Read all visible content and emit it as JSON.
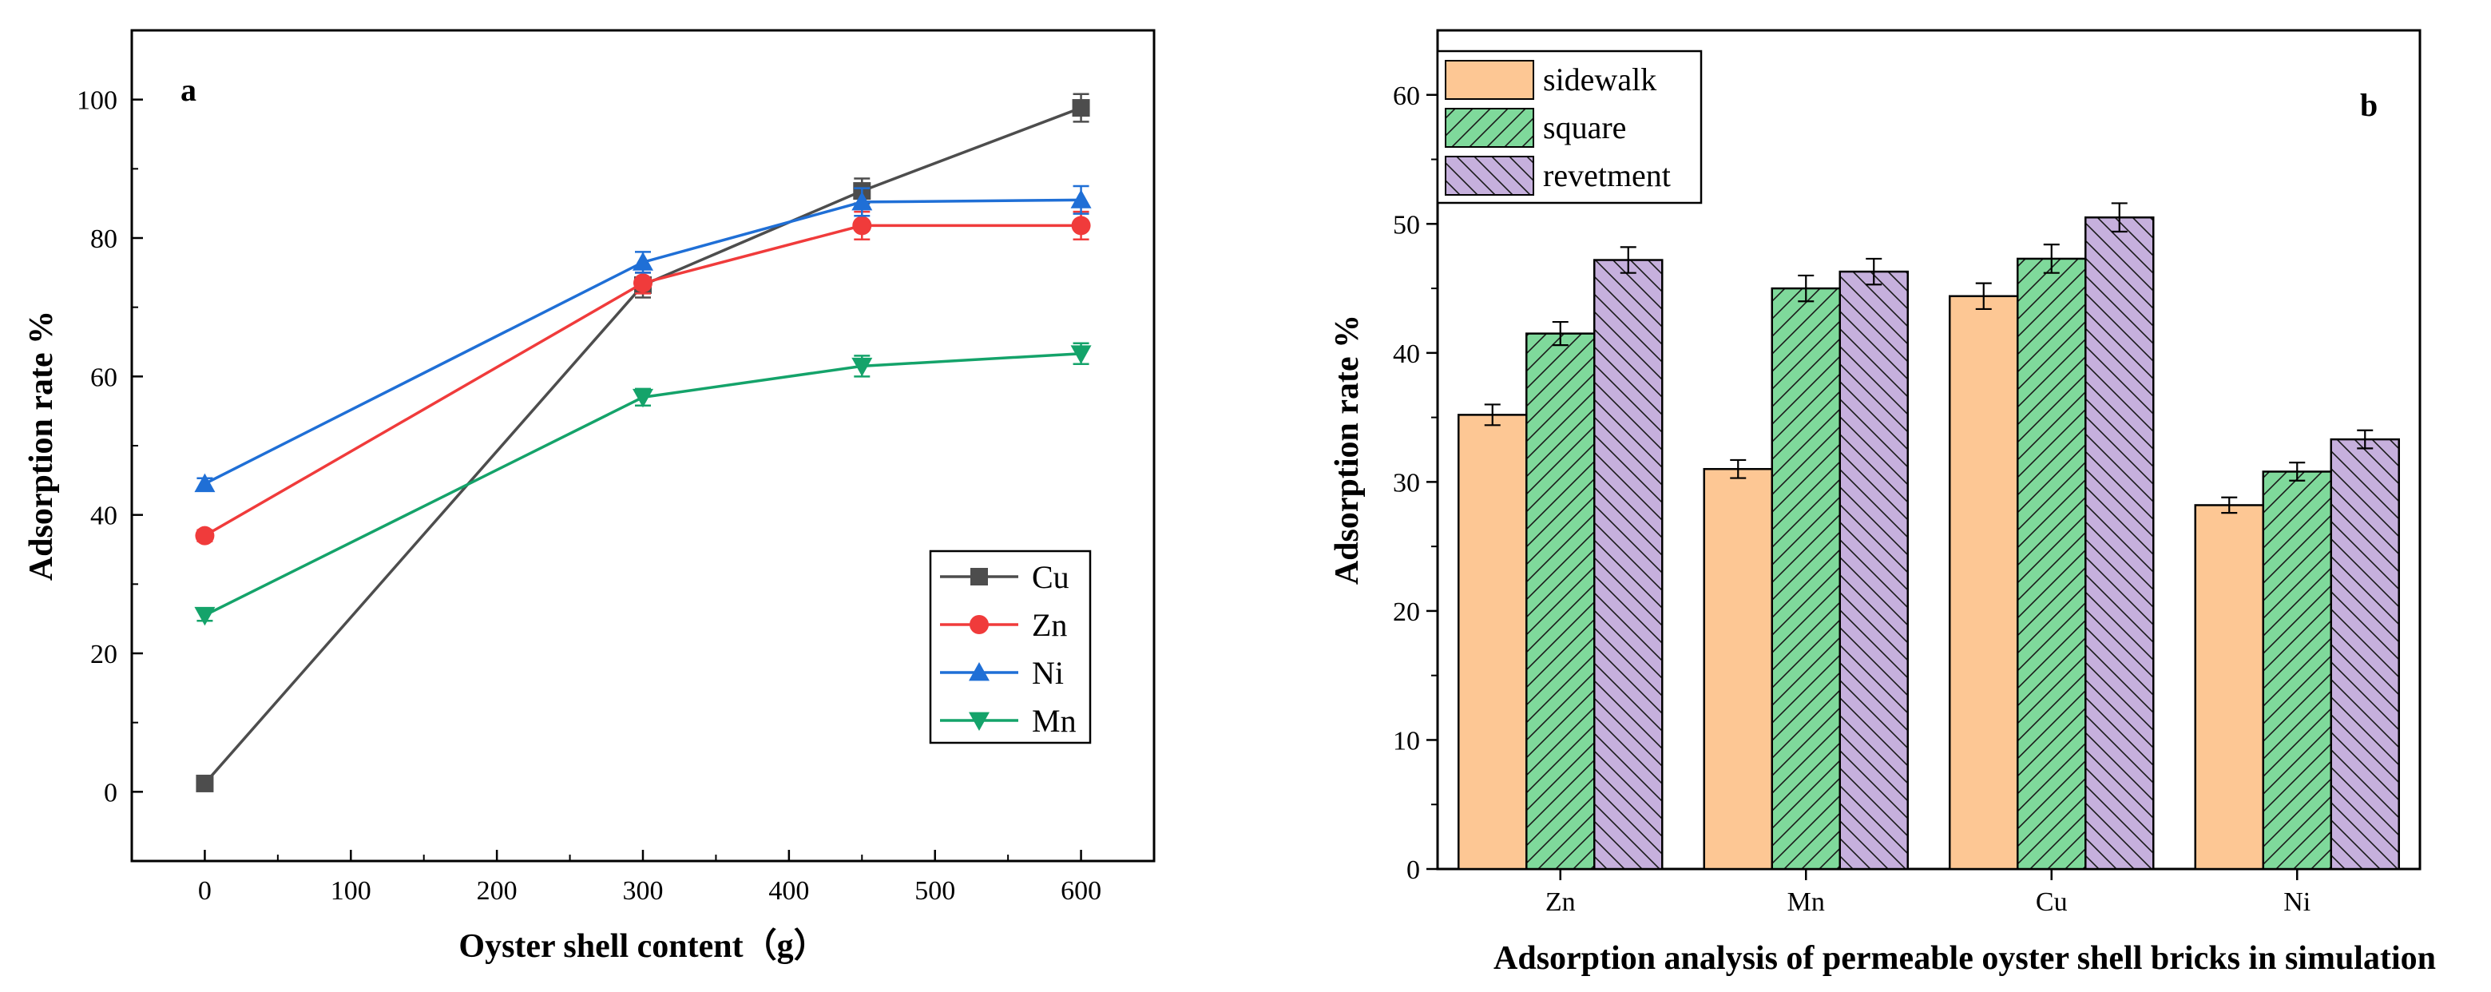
{
  "colors": {
    "Cu": "#4d4d4d",
    "Zn": "#f03b3b",
    "Ni": "#1f6fd6",
    "Mn": "#14a36a",
    "sidewalk": "#fdc794",
    "square": "#7fd99b",
    "revetment": "#c6b0dd"
  },
  "chart_data": [
    {
      "type": "line",
      "panel_label": "a",
      "title": "",
      "xlabel": "Oyster shell content（g）",
      "ylabel": "Adsorption rate %",
      "xlim": [
        -50,
        650
      ],
      "ylim": [
        -10,
        110
      ],
      "xticks": [
        0,
        100,
        200,
        300,
        400,
        500,
        600
      ],
      "yticks": [
        0,
        20,
        40,
        60,
        80,
        100
      ],
      "legend_position": "bottom-right",
      "x": [
        0,
        300,
        450,
        600
      ],
      "series": [
        {
          "name": "Cu",
          "marker": "square",
          "values": [
            1.2,
            73.2,
            86.8,
            98.8
          ],
          "errors": [
            0.8,
            1.8,
            1.8,
            2.0
          ]
        },
        {
          "name": "Zn",
          "marker": "circle",
          "values": [
            37.0,
            73.5,
            81.8,
            81.8
          ],
          "errors": [
            0.8,
            1.5,
            2.0,
            2.0
          ]
        },
        {
          "name": "Ni",
          "marker": "triangle-up",
          "values": [
            44.5,
            76.5,
            85.2,
            85.5
          ],
          "errors": [
            0.8,
            1.5,
            2.0,
            2.0
          ]
        },
        {
          "name": "Mn",
          "marker": "triangle-down",
          "values": [
            25.5,
            57.0,
            61.5,
            63.3
          ],
          "errors": [
            0.8,
            1.2,
            1.5,
            1.5
          ]
        }
      ]
    },
    {
      "type": "bar",
      "panel_label": "b",
      "title": "",
      "xlabel": "Adsorption analysis of permeable oyster shell bricks in simulation",
      "ylabel": "Adsorption rate %",
      "ylim": [
        0,
        65
      ],
      "yticks": [
        0,
        10,
        20,
        30,
        40,
        50,
        60
      ],
      "legend_position": "top-left",
      "categories": [
        "Zn",
        "Mn",
        "Cu",
        "Ni"
      ],
      "series": [
        {
          "name": "sidewalk",
          "pattern": "none",
          "values": [
            35.2,
            31.0,
            44.4,
            28.2
          ],
          "errors": [
            0.8,
            0.7,
            1.0,
            0.6
          ]
        },
        {
          "name": "square",
          "pattern": "hatch-forward",
          "values": [
            41.5,
            45.0,
            47.3,
            30.8
          ],
          "errors": [
            0.9,
            1.0,
            1.1,
            0.7
          ]
        },
        {
          "name": "revetment",
          "pattern": "hatch-backward",
          "values": [
            47.2,
            46.3,
            50.5,
            33.3
          ],
          "errors": [
            1.0,
            1.0,
            1.1,
            0.7
          ]
        }
      ]
    }
  ]
}
